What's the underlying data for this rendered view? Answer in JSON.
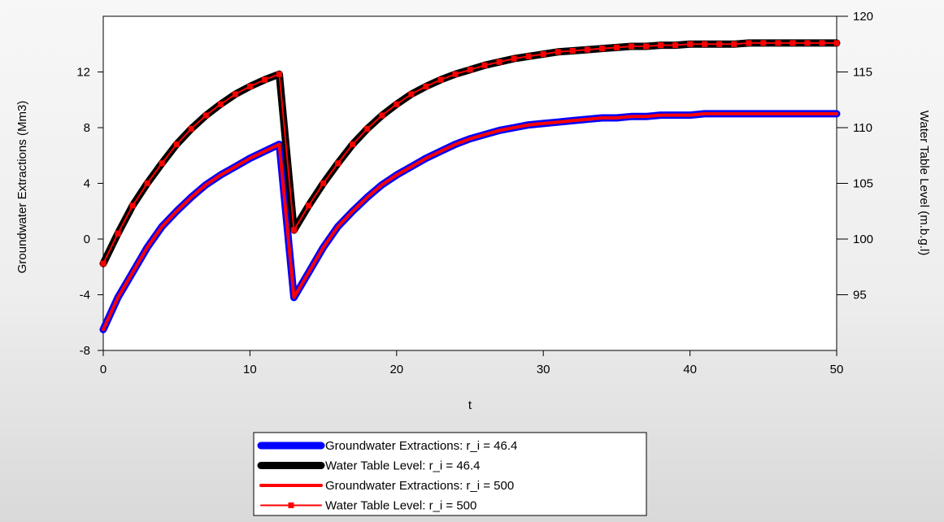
{
  "chart_data": {
    "type": "line",
    "xlabel": "t",
    "ylabel_left": "Groundwater Extractions (Mm3)",
    "ylabel_right": "Water Table Level (m.b.g.l)",
    "xlim": [
      0,
      50
    ],
    "ylim_left": [
      -8,
      16
    ],
    "ylim_right": [
      90,
      120
    ],
    "x_ticks": [
      0,
      10,
      20,
      30,
      40,
      50
    ],
    "y_left_ticks": [
      -8,
      -4,
      0,
      4,
      8,
      12
    ],
    "y_right_ticks": [
      95,
      100,
      105,
      110,
      115,
      120
    ],
    "x": [
      0,
      1,
      2,
      3,
      4,
      5,
      6,
      7,
      8,
      9,
      10,
      11,
      12,
      13,
      14,
      15,
      16,
      17,
      18,
      19,
      20,
      21,
      22,
      23,
      24,
      25,
      26,
      27,
      28,
      29,
      30,
      31,
      32,
      33,
      34,
      35,
      36,
      37,
      38,
      39,
      40,
      41,
      42,
      43,
      44,
      45,
      46,
      47,
      48,
      49,
      50
    ],
    "series": [
      {
        "name": "Groundwater Extractions: r_i = 46.4",
        "axis": "left",
        "color": "#0000ff",
        "style": "thick",
        "values": [
          -6.5,
          -4.2,
          -2.4,
          -0.6,
          0.9,
          2.0,
          3.0,
          3.9,
          4.6,
          5.2,
          5.8,
          6.3,
          6.8,
          -4.2,
          -2.4,
          -0.6,
          0.9,
          2.0,
          3.0,
          3.9,
          4.6,
          5.2,
          5.8,
          6.3,
          6.8,
          7.2,
          7.5,
          7.8,
          8.0,
          8.2,
          8.3,
          8.4,
          8.5,
          8.6,
          8.7,
          8.7,
          8.8,
          8.8,
          8.9,
          8.9,
          8.9,
          9.0,
          9.0,
          9.0,
          9.0,
          9.0,
          9.0,
          9.0,
          9.0,
          9.0,
          9.0
        ]
      },
      {
        "name": "Water Table Level: r_i = 46.4",
        "axis": "right",
        "color": "#000000",
        "style": "thick",
        "values": [
          97.8,
          100.5,
          103.0,
          105.0,
          106.8,
          108.5,
          109.9,
          111.1,
          112.1,
          113.0,
          113.7,
          114.3,
          114.8,
          100.8,
          103.0,
          105.0,
          106.8,
          108.5,
          109.9,
          111.1,
          112.1,
          113.0,
          113.7,
          114.3,
          114.8,
          115.2,
          115.6,
          115.9,
          116.2,
          116.4,
          116.6,
          116.8,
          116.9,
          117.0,
          117.1,
          117.2,
          117.3,
          117.3,
          117.4,
          117.4,
          117.5,
          117.5,
          117.5,
          117.5,
          117.6,
          117.6,
          117.6,
          117.6,
          117.6,
          117.6,
          117.6
        ]
      },
      {
        "name": "Groundwater Extractions: r_i = 500",
        "axis": "left",
        "color": "#ff0000",
        "style": "medium",
        "values": [
          -6.5,
          -4.2,
          -2.4,
          -0.6,
          0.9,
          2.0,
          3.0,
          3.9,
          4.6,
          5.2,
          5.8,
          6.3,
          6.8,
          -4.2,
          -2.4,
          -0.6,
          0.9,
          2.0,
          3.0,
          3.9,
          4.6,
          5.2,
          5.8,
          6.3,
          6.8,
          7.2,
          7.5,
          7.8,
          8.0,
          8.2,
          8.3,
          8.4,
          8.5,
          8.6,
          8.7,
          8.7,
          8.8,
          8.8,
          8.9,
          8.9,
          8.9,
          9.0,
          9.0,
          9.0,
          9.0,
          9.0,
          9.0,
          9.0,
          9.0,
          9.0,
          9.0
        ]
      },
      {
        "name": "Water Table Level: r_i = 500",
        "axis": "right",
        "color": "#ff0000",
        "style": "thin-markers",
        "values": [
          97.8,
          100.5,
          103.0,
          105.0,
          106.8,
          108.5,
          109.9,
          111.1,
          112.1,
          113.0,
          113.7,
          114.3,
          114.8,
          100.8,
          103.0,
          105.0,
          106.8,
          108.5,
          109.9,
          111.1,
          112.1,
          113.0,
          113.7,
          114.3,
          114.8,
          115.2,
          115.6,
          115.9,
          116.2,
          116.4,
          116.6,
          116.8,
          116.9,
          117.0,
          117.1,
          117.2,
          117.3,
          117.3,
          117.4,
          117.4,
          117.5,
          117.5,
          117.5,
          117.5,
          117.6,
          117.6,
          117.6,
          117.6,
          117.6,
          117.6,
          117.6
        ]
      }
    ],
    "grid": false,
    "legend_position": "bottom-center"
  }
}
